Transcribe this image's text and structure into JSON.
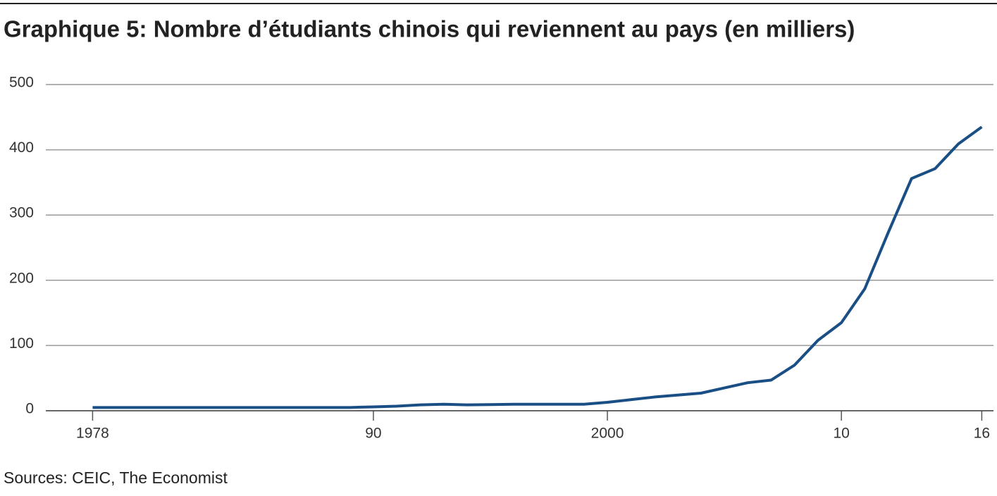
{
  "chart_data": {
    "type": "line",
    "title": "Graphique 5: Nombre d’étudiants chinois qui reviennent au pays (en milliers)",
    "source": "Sources: CEIC, The Economist",
    "x": [
      1978,
      1979,
      1980,
      1981,
      1982,
      1983,
      1984,
      1985,
      1986,
      1987,
      1988,
      1989,
      1990,
      1991,
      1992,
      1993,
      1994,
      1995,
      1996,
      1997,
      1998,
      1999,
      2000,
      2001,
      2002,
      2003,
      2004,
      2005,
      2006,
      2007,
      2008,
      2009,
      2010,
      2011,
      2012,
      2013,
      2014,
      2015,
      2016
    ],
    "series": [
      {
        "name": "Étudiants",
        "color": "#1a4f86",
        "values": [
          5,
          5,
          5,
          5,
          5,
          5,
          5,
          5,
          5,
          5,
          5,
          5,
          6,
          7,
          9,
          10,
          9,
          9.5,
          10,
          10,
          10,
          10,
          13,
          17,
          21,
          24,
          27,
          35,
          43,
          47,
          70,
          108,
          135,
          187,
          273,
          356,
          371,
          409,
          435
        ]
      }
    ],
    "xlim": [
      1976,
      2016.5
    ],
    "xticks": [
      1978,
      {
        "value": 1990,
        "label": "90"
      },
      2000,
      {
        "value": 2010,
        "label": "10"
      },
      {
        "value": 2016,
        "label": "16"
      }
    ],
    "ylim": [
      0,
      500
    ],
    "yticks": [
      0,
      100,
      200,
      300,
      400,
      500
    ],
    "grid": true
  }
}
